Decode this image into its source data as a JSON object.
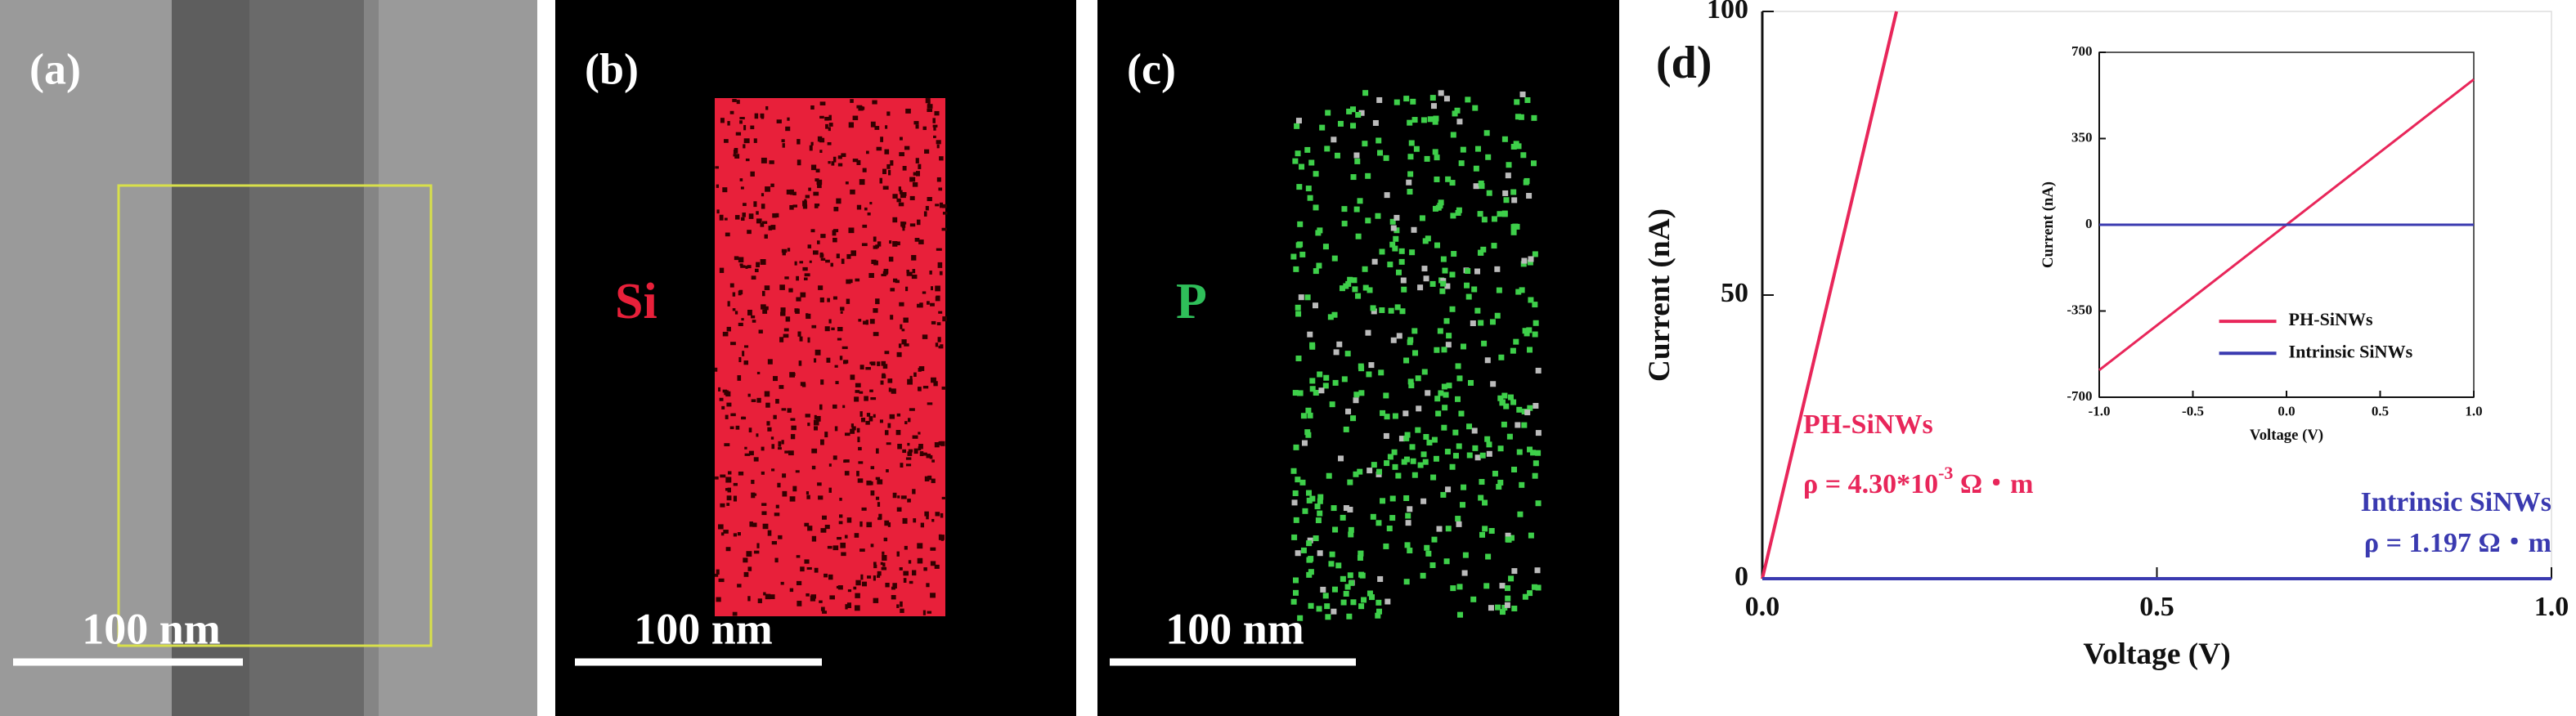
{
  "panels": [
    {
      "label": "(a)",
      "scale_bar": "100 nm"
    },
    {
      "label": "(b)",
      "element": "Si",
      "scale_bar": "100 nm"
    },
    {
      "label": "(c)",
      "element": "P",
      "scale_bar": "100 nm"
    }
  ],
  "chart_data": [
    {
      "type": "line",
      "panel_label": "(d)",
      "x_label": "Voltage (V)",
      "y_label": "Current (nA)",
      "xlim": [
        0,
        1
      ],
      "xticks": [
        {
          "value": 0,
          "label": "0.0"
        },
        {
          "value": 0.5,
          "label": "0.5"
        },
        {
          "value": 1,
          "label": "1.0"
        }
      ],
      "ylim": [
        0,
        100
      ],
      "yticks": [
        0,
        50,
        100
      ],
      "legend": false,
      "series": [
        {
          "name": "PH-SiNWs",
          "color": "#e8265a",
          "x": [
            0,
            0.17
          ],
          "values": [
            0,
            100
          ]
        },
        {
          "name": "Intrinsic SiNWs",
          "color": "#3a3ab0",
          "x": [
            0,
            1
          ],
          "values": [
            0,
            0
          ]
        }
      ],
      "annotations": [
        {
          "text": "ρ = 4.30*10",
          "superscript": "-3",
          "tail": " Ω・m",
          "color": "#e8265a"
        },
        {
          "text": "ρ = 1.197 Ω・m",
          "color": "#3a3ab0"
        }
      ]
    },
    {
      "type": "line",
      "x_label": "Voltage (V)",
      "y_label": "Current (nA)",
      "xlim": [
        -1,
        1
      ],
      "xticks": [
        {
          "value": -1,
          "label": "-1.0"
        },
        {
          "value": -0.5,
          "label": "-0.5"
        },
        {
          "value": 0,
          "label": "0.0"
        },
        {
          "value": 0.5,
          "label": "0.5"
        },
        {
          "value": 1,
          "label": "1.0"
        }
      ],
      "ylim": [
        -700,
        700
      ],
      "yticks": [
        -700,
        -350,
        0,
        350,
        700
      ],
      "legend": true,
      "series": [
        {
          "name": "PH-SiNWs",
          "color": "#e8265a",
          "x": [
            -1,
            1
          ],
          "values": [
            -590,
            590
          ]
        },
        {
          "name": "Intrinsic SiNWs",
          "color": "#3a3ab0",
          "x": [
            -1,
            1
          ],
          "values": [
            0,
            0
          ]
        }
      ]
    }
  ]
}
